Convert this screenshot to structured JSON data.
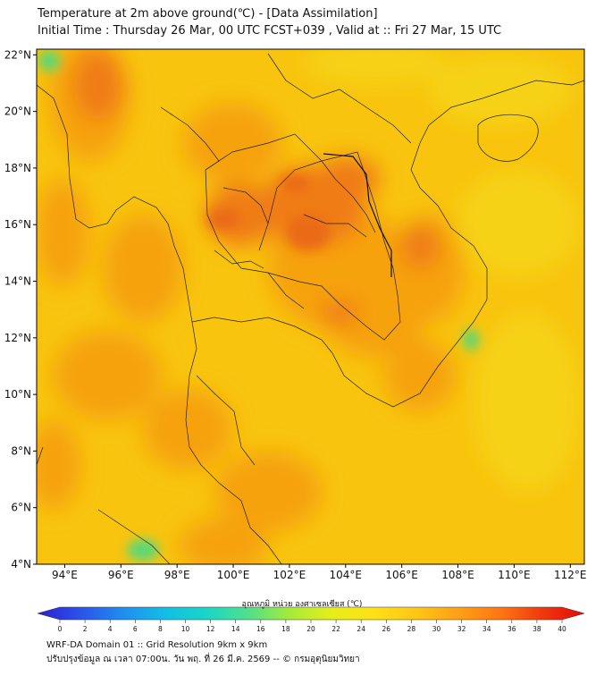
{
  "title_line1": "Temperature at 2m above ground(℃) - [Data Assimilation]",
  "title_line2": "Initial Time : Thursday 26 Mar, 00 UTC FCST+039 , Valid at :: Fri 27 Mar, 15 UTC",
  "lat_labels": [
    "22°N",
    "20°N",
    "18°N",
    "16°N",
    "14°N",
    "12°N",
    "10°N",
    "8°N",
    "6°N",
    "4°N"
  ],
  "lat_values": [
    22,
    20,
    18,
    16,
    14,
    12,
    10,
    8,
    6,
    4
  ],
  "lon_labels": [
    "94°E",
    "96°E",
    "98°E",
    "100°E",
    "102°E",
    "104°E",
    "106°E",
    "108°E",
    "110°E",
    "112°E"
  ],
  "lon_values": [
    94,
    96,
    98,
    100,
    102,
    104,
    106,
    108,
    110,
    112
  ],
  "map_extent": {
    "lon_min": 93,
    "lon_max": 112.5,
    "lat_min": 4,
    "lat_max": 22.2
  },
  "colorbar": {
    "label": "อุณหภูมิ หน่วย องศาเซลเซียส (℃)",
    "ticks": [
      "0",
      "2",
      "4",
      "6",
      "8",
      "10",
      "12",
      "14",
      "16",
      "18",
      "20",
      "22",
      "24",
      "26",
      "28",
      "30",
      "32",
      "34",
      "36",
      "38",
      "40"
    ],
    "colors": [
      "#2c1ed6",
      "#2a52e8",
      "#1f8cf0",
      "#12bde6",
      "#19d6c4",
      "#4fe08c",
      "#a6ea3a",
      "#e6ee1a",
      "#ffe017",
      "#ffc616",
      "#ffa016",
      "#ff7612",
      "#f0380e",
      "#e40a0a"
    ],
    "min": 0,
    "max": 40
  },
  "field_colors": {
    "base": "#f8c40e",
    "warm": "#f6a20e",
    "hot": "#f07c12",
    "hotter": "#ea6a14",
    "cool": "#f6d214",
    "green": "#58d878"
  },
  "footer_line1": "WRF-DA Domain 01 :: Grid Resolution 9km x 9km",
  "footer_line2": "ปรับปรุงข้อมูล ณ เวลา 07:00น. วัน พฤ. ที่ 26 มี.ค. 2569 -- © กรมอุตุนิยมวิทยา"
}
